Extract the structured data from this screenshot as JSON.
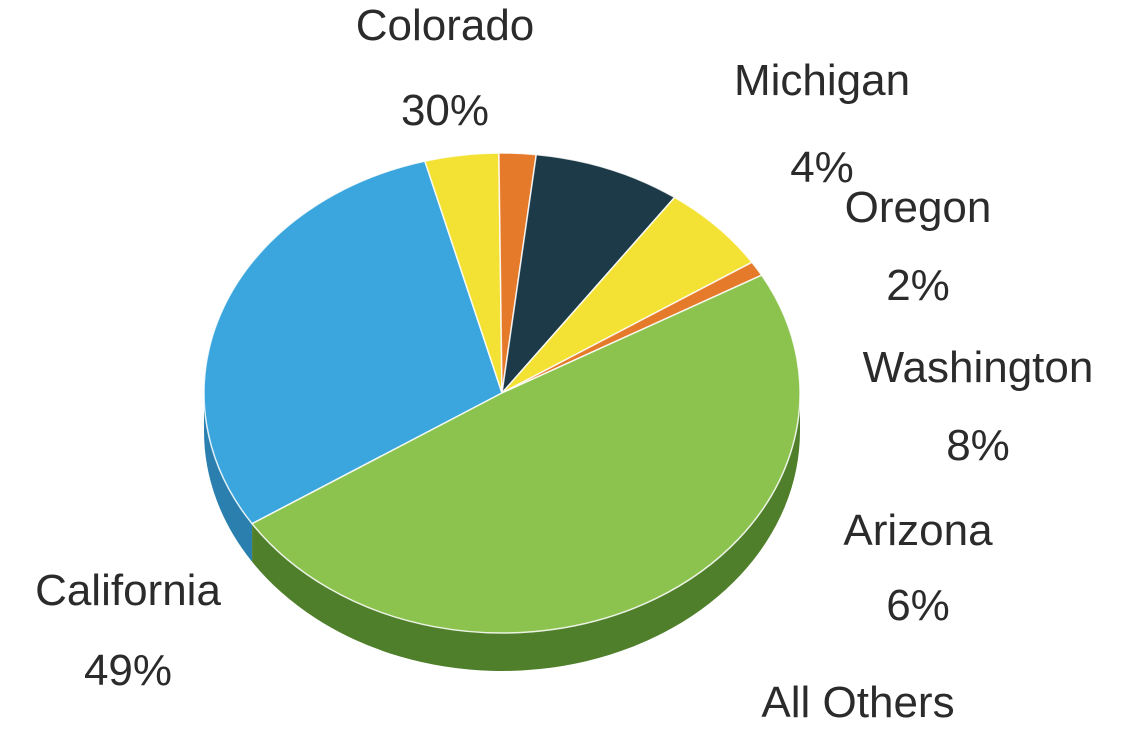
{
  "chart_data": {
    "type": "pie",
    "style": "3d",
    "start_angle_deg": 213,
    "direction": "clockwise",
    "slices": [
      {
        "label": "Colorado",
        "value": 30,
        "value_label": "30%",
        "color": "#3aa6dd",
        "side_color": "#2a7fae"
      },
      {
        "label": "Michigan",
        "value": 4,
        "value_label": "4%",
        "color": "#f3e234",
        "side_color": "#bfae1e"
      },
      {
        "label": "Oregon",
        "value": 2,
        "value_label": "2%",
        "color": "#e57b2a",
        "side_color": "#b35a17"
      },
      {
        "label": "Washington",
        "value": 8,
        "value_label": "8%",
        "color": "#1d3a48",
        "side_color": "#122630"
      },
      {
        "label": "Arizona",
        "value": 6,
        "value_label": "6%",
        "color": "#f3e234",
        "side_color": "#bfae1e"
      },
      {
        "label": "All Others",
        "value": 1,
        "value_label": "",
        "color": "#e57b2a",
        "side_color": "#b35a17"
      },
      {
        "label": "California",
        "value": 49,
        "value_label": "49%",
        "color": "#8bc34e",
        "side_color": "#4f7f2a"
      }
    ]
  }
}
